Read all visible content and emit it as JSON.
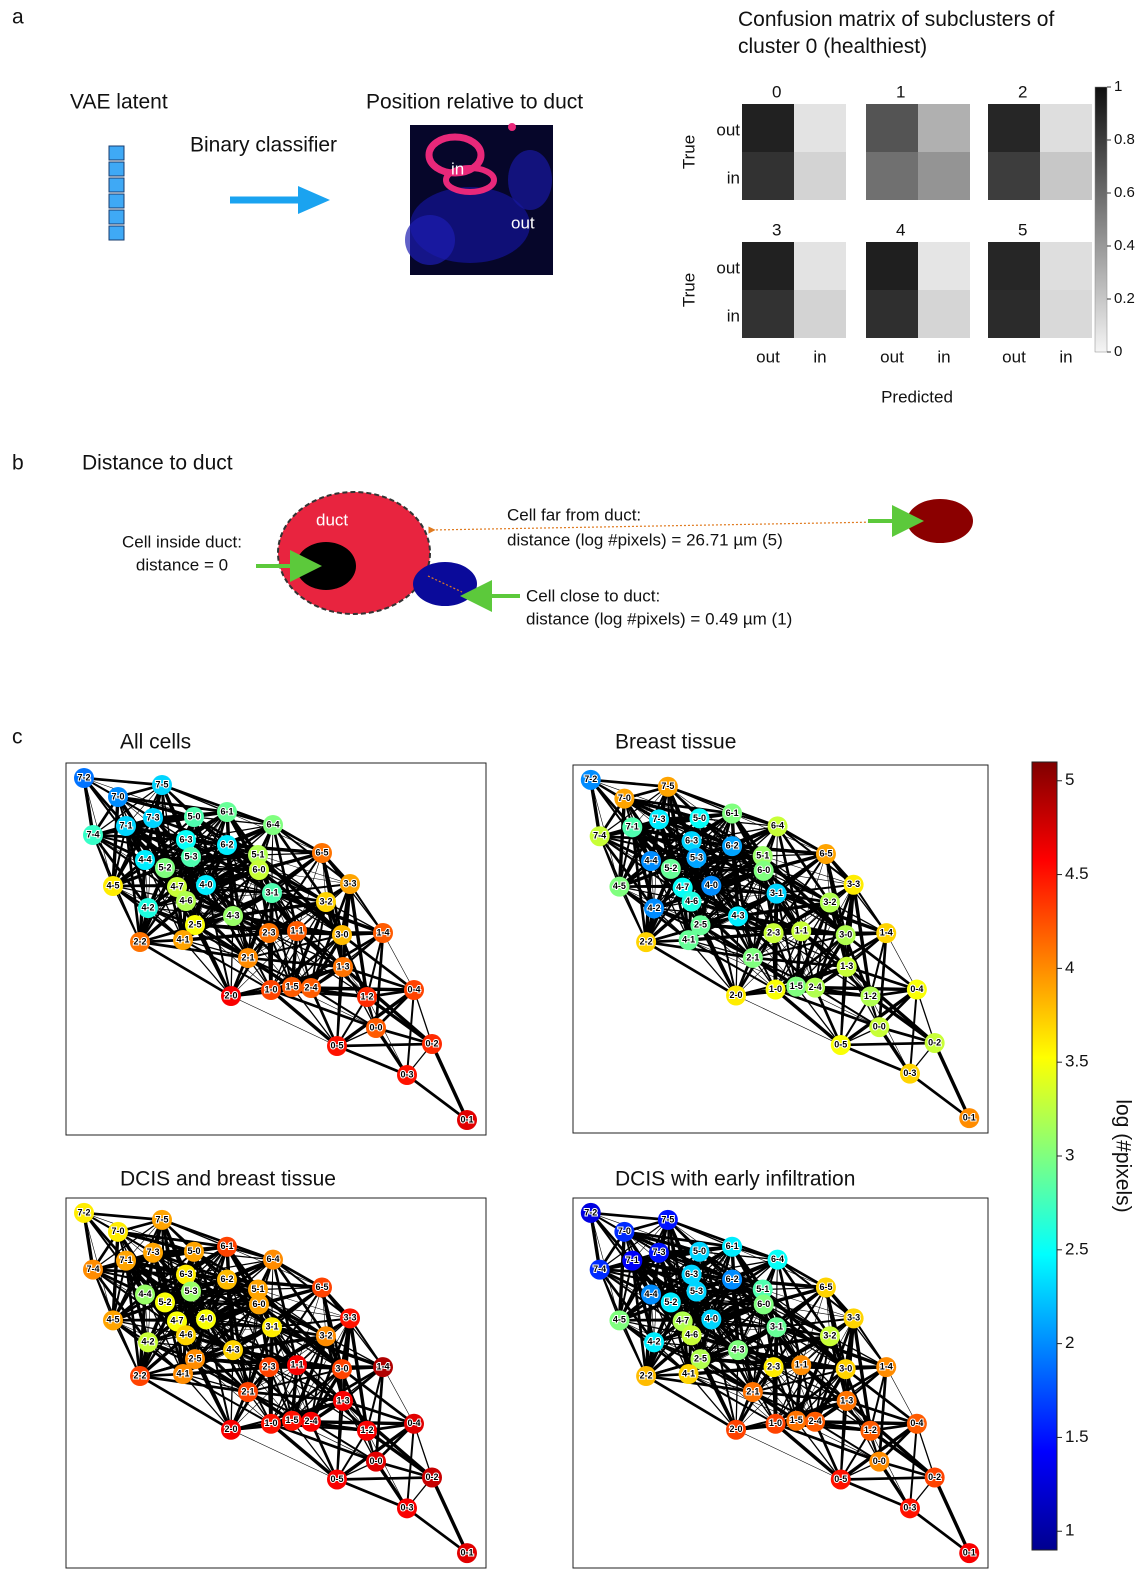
{
  "panel_a": {
    "label": "a",
    "latent_title": "VAE latent",
    "classifier_label": "Binary classifier",
    "position_title": "Position relative to duct",
    "image_labels": {
      "in": "in",
      "out": "out"
    },
    "confusion": {
      "title": "Confusion matrix of subclusters of cluster 0 (healthiest)",
      "ylabel": "True",
      "xlabel": "Predicted",
      "row_labels": [
        "out",
        "in"
      ],
      "col_labels": [
        "out",
        "in"
      ],
      "matrices": [
        {
          "title": "0",
          "values": [
            [
              0.92,
              0.08
            ],
            [
              0.85,
              0.15
            ]
          ]
        },
        {
          "title": "1",
          "values": [
            [
              0.7,
              0.3
            ],
            [
              0.58,
              0.42
            ]
          ]
        },
        {
          "title": "2",
          "values": [
            [
              0.9,
              0.1
            ],
            [
              0.8,
              0.2
            ]
          ]
        },
        {
          "title": "3",
          "values": [
            [
              0.92,
              0.08
            ],
            [
              0.85,
              0.15
            ]
          ]
        },
        {
          "title": "4",
          "values": [
            [
              0.93,
              0.07
            ],
            [
              0.86,
              0.14
            ]
          ]
        },
        {
          "title": "5",
          "values": [
            [
              0.9,
              0.1
            ],
            [
              0.88,
              0.12
            ]
          ]
        }
      ],
      "colorbar": {
        "lim": [
          0,
          1
        ],
        "ticks": [
          0,
          0.2,
          0.4,
          0.6,
          0.8,
          1
        ]
      }
    }
  },
  "panel_b": {
    "label": "b",
    "title": "Distance to duct",
    "duct_label": "duct",
    "inside": [
      "Cell inside duct:",
      "distance = 0"
    ],
    "far": [
      "Cell far from duct:",
      "distance (log #pixels) = 26.71 µm (5)"
    ],
    "close": [
      "Cell close to duct:",
      "distance (log #pixels) = 0.49 µm (1)"
    ]
  },
  "panel_c": {
    "label": "c",
    "node_labels": [
      "7-2",
      "7-5",
      "7-0",
      "6-1",
      "7-3",
      "5-0",
      "7-1",
      "6-4",
      "7-4",
      "6-3",
      "6-2",
      "5-1",
      "5-3",
      "6-5",
      "4-4",
      "5-2",
      "6-0",
      "3-1",
      "4-7",
      "4-0",
      "4-5",
      "3-3",
      "4-6",
      "3-2",
      "4-2",
      "2-5",
      "4-3",
      "2-3",
      "1-1",
      "3-0",
      "1-4",
      "4-1",
      "2-2",
      "2-1",
      "1-3",
      "1-0",
      "1-5",
      "2-4",
      "2-0",
      "1-2",
      "0-4",
      "0-0",
      "0-2",
      "0-5",
      "0-3",
      "0-1"
    ],
    "graphs": [
      {
        "title": "All cells",
        "values": [
          1.9,
          2.3,
          2.0,
          2.9,
          2.3,
          2.8,
          2.3,
          3.0,
          2.7,
          2.5,
          2.4,
          3.2,
          2.8,
          4.1,
          2.4,
          3.0,
          3.3,
          2.8,
          3.3,
          2.4,
          3.6,
          3.9,
          3.2,
          3.7,
          2.6,
          3.5,
          3.1,
          4.1,
          4.2,
          3.8,
          4.2,
          3.9,
          4.1,
          4.0,
          4.1,
          4.3,
          4.2,
          4.2,
          4.6,
          4.4,
          4.3,
          4.2,
          4.4,
          4.5,
          4.5,
          4.7
        ]
      },
      {
        "title": "Breast tissue",
        "values": [
          2.0,
          3.9,
          3.9,
          3.0,
          2.4,
          2.5,
          2.8,
          3.3,
          3.3,
          2.3,
          2.1,
          3.1,
          2.1,
          3.9,
          2.0,
          2.9,
          3.0,
          2.3,
          2.5,
          2.0,
          3.0,
          3.6,
          2.6,
          3.2,
          2.0,
          2.9,
          2.4,
          3.3,
          3.3,
          3.2,
          3.7,
          2.9,
          3.7,
          3.0,
          3.3,
          3.5,
          3.0,
          3.2,
          3.6,
          3.2,
          3.5,
          3.3,
          3.3,
          3.5,
          3.7,
          4.0
        ]
      },
      {
        "title": "DCIS and breast tissue",
        "values": [
          3.6,
          3.9,
          3.6,
          4.3,
          3.9,
          3.9,
          3.9,
          4.0,
          4.0,
          3.6,
          3.8,
          3.9,
          3.1,
          4.3,
          3.1,
          3.5,
          3.9,
          3.6,
          3.5,
          3.5,
          3.9,
          4.5,
          3.7,
          4.0,
          3.3,
          4.0,
          3.7,
          4.3,
          4.6,
          4.3,
          4.9,
          4.0,
          4.3,
          4.3,
          4.6,
          4.5,
          4.5,
          4.6,
          4.6,
          4.6,
          4.7,
          4.7,
          4.8,
          4.6,
          4.6,
          4.7
        ]
      },
      {
        "title": "DCIS with early infiltration",
        "values": [
          1.3,
          1.5,
          1.6,
          2.4,
          1.5,
          2.3,
          1.4,
          2.5,
          1.6,
          2.3,
          2.0,
          2.8,
          2.3,
          3.7,
          2.0,
          2.4,
          3.0,
          2.9,
          3.2,
          2.3,
          3.0,
          3.7,
          3.3,
          3.3,
          2.4,
          3.2,
          3.0,
          3.6,
          4.0,
          3.7,
          4.0,
          3.7,
          3.8,
          4.1,
          4.1,
          4.3,
          4.1,
          4.2,
          4.3,
          4.2,
          4.2,
          4.0,
          4.3,
          4.5,
          4.5,
          4.6
        ]
      }
    ],
    "colorbar": {
      "label": "log (#pixels)",
      "lim": [
        0.9,
        5.1
      ],
      "ticks": [
        1,
        1.5,
        2,
        2.5,
        3,
        3.5,
        4,
        4.5,
        5
      ]
    }
  }
}
